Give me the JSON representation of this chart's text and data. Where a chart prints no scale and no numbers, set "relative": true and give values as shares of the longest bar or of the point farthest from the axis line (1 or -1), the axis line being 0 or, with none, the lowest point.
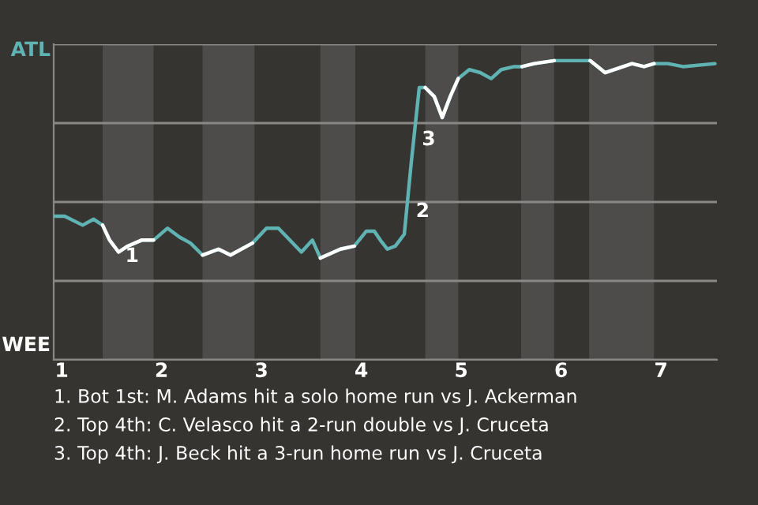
{
  "chart_data": {
    "type": "line",
    "x": [
      0.92,
      1.03,
      1.21,
      1.32,
      1.41,
      1.48,
      1.57,
      1.66,
      1.8,
      1.92,
      2.06,
      2.18,
      2.29,
      2.41,
      2.57,
      2.69,
      2.91,
      3.05,
      3.17,
      3.4,
      3.51,
      3.59,
      3.79,
      3.93,
      4.05,
      4.13,
      4.19,
      4.26,
      4.34,
      4.43,
      4.5,
      4.58,
      4.64,
      4.73,
      4.81,
      4.89,
      4.97,
      5.08,
      5.19,
      5.3,
      5.4,
      5.53,
      5.61,
      5.73,
      5.93,
      6.17,
      6.29,
      6.44,
      6.71,
      6.83,
      6.93,
      7.07,
      7.22,
      7.54
    ],
    "relative": true,
    "series": [
      {
        "color": "#5fb3b3",
        "values": [
          0.48,
          0.48,
          0.45,
          0.47,
          0.45,
          0.4,
          0.36,
          0.38,
          0.4,
          0.4,
          0.44,
          0.41,
          0.39,
          0.35,
          0.37,
          0.35,
          0.39,
          0.44,
          0.44,
          0.36,
          0.4,
          0.34,
          0.37,
          0.38,
          0.43,
          0.43,
          0.4,
          0.37,
          0.38,
          0.42,
          0.66,
          0.91,
          0.91,
          0.88,
          0.81,
          0.88,
          0.94,
          0.97,
          0.96,
          0.94,
          0.97,
          0.98,
          0.98,
          0.99,
          1.0,
          1.0,
          1.0,
          0.96,
          0.99,
          0.98,
          0.99,
          0.99,
          0.98,
          0.99
        ]
      },
      {
        "color": "#ffffff",
        "values": [
          null,
          null,
          null,
          null,
          0.45,
          0.4,
          0.36,
          0.38,
          0.4,
          0.4,
          null,
          null,
          null,
          0.35,
          0.37,
          0.35,
          0.39,
          null,
          null,
          null,
          null,
          0.34,
          0.37,
          0.38,
          null,
          null,
          null,
          null,
          null,
          null,
          null,
          null,
          0.91,
          0.88,
          0.81,
          0.88,
          0.94,
          null,
          null,
          null,
          null,
          null,
          0.98,
          0.99,
          1.0,
          null,
          1.0,
          0.96,
          0.99,
          0.98,
          0.99,
          null,
          null,
          null
        ]
      }
    ],
    "xlim": [
      0.92,
      7.56
    ],
    "xticks": [
      1,
      2,
      3,
      4,
      5,
      6,
      7
    ],
    "grid": "y",
    "bands": [
      {
        "axis": "x",
        "from": 1.41,
        "to": 1.92,
        "color": "#4d4c4a"
      },
      {
        "axis": "x",
        "from": 2.41,
        "to": 2.93,
        "color": "#4d4c4a"
      },
      {
        "axis": "x",
        "from": 3.59,
        "to": 3.94,
        "color": "#4d4c4a"
      },
      {
        "axis": "x",
        "from": 4.64,
        "to": 4.97,
        "color": "#4d4c4a"
      },
      {
        "axis": "x",
        "from": 5.6,
        "to": 5.93,
        "color": "#4d4c4a"
      },
      {
        "axis": "x",
        "from": 6.28,
        "to": 6.93,
        "color": "#4d4c4a"
      }
    ],
    "annotations": [
      "ATL",
      "WEE",
      {
        "text": "1",
        "x": 1.57,
        "y": 0.36
      },
      {
        "text": "2",
        "x": 4.48,
        "y": 0.51
      },
      {
        "text": "3",
        "x": 4.54,
        "y": 0.75
      },
      "1. Bot 1st: M. Adams hit a solo home run vs J. Ackerman",
      "2. Top 4th: C. Velasco hit a 2-run double vs J. Cruceta",
      "3. Top 4th: J. Beck hit a 3-run home run vs J. Cruceta"
    ]
  }
}
